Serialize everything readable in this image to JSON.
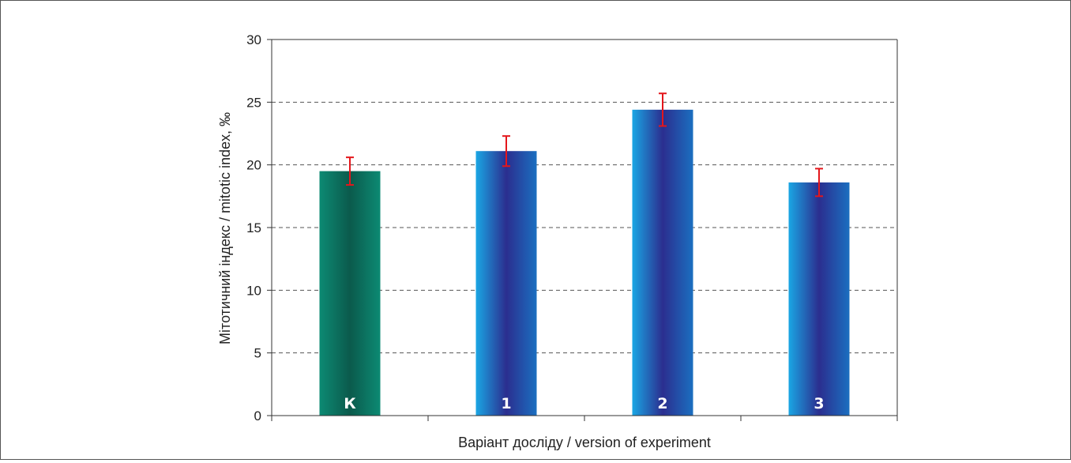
{
  "chart_data": {
    "type": "bar",
    "categories": [
      "К",
      "1",
      "2",
      "3"
    ],
    "values": [
      19.5,
      21.1,
      24.4,
      18.6
    ],
    "errors": [
      1.1,
      1.2,
      1.3,
      1.1
    ],
    "xlabel": "Варіант досліду / version of experiment",
    "ylabel": "Мітотичний індекс / mitotic index, ‰",
    "ylim": [
      0,
      30
    ],
    "yticks": [
      "0",
      "5",
      "10",
      "15",
      "20",
      "25",
      "30"
    ],
    "grid": "horizontal-dashed",
    "colors": {
      "control": [
        "#0c8a73",
        "#0b5a4c",
        "#0c8a73"
      ],
      "variant": [
        "#1aa6e4",
        "#2b2e8f",
        "#1b6fc0"
      ],
      "error_bar": "#e4161b"
    }
  }
}
